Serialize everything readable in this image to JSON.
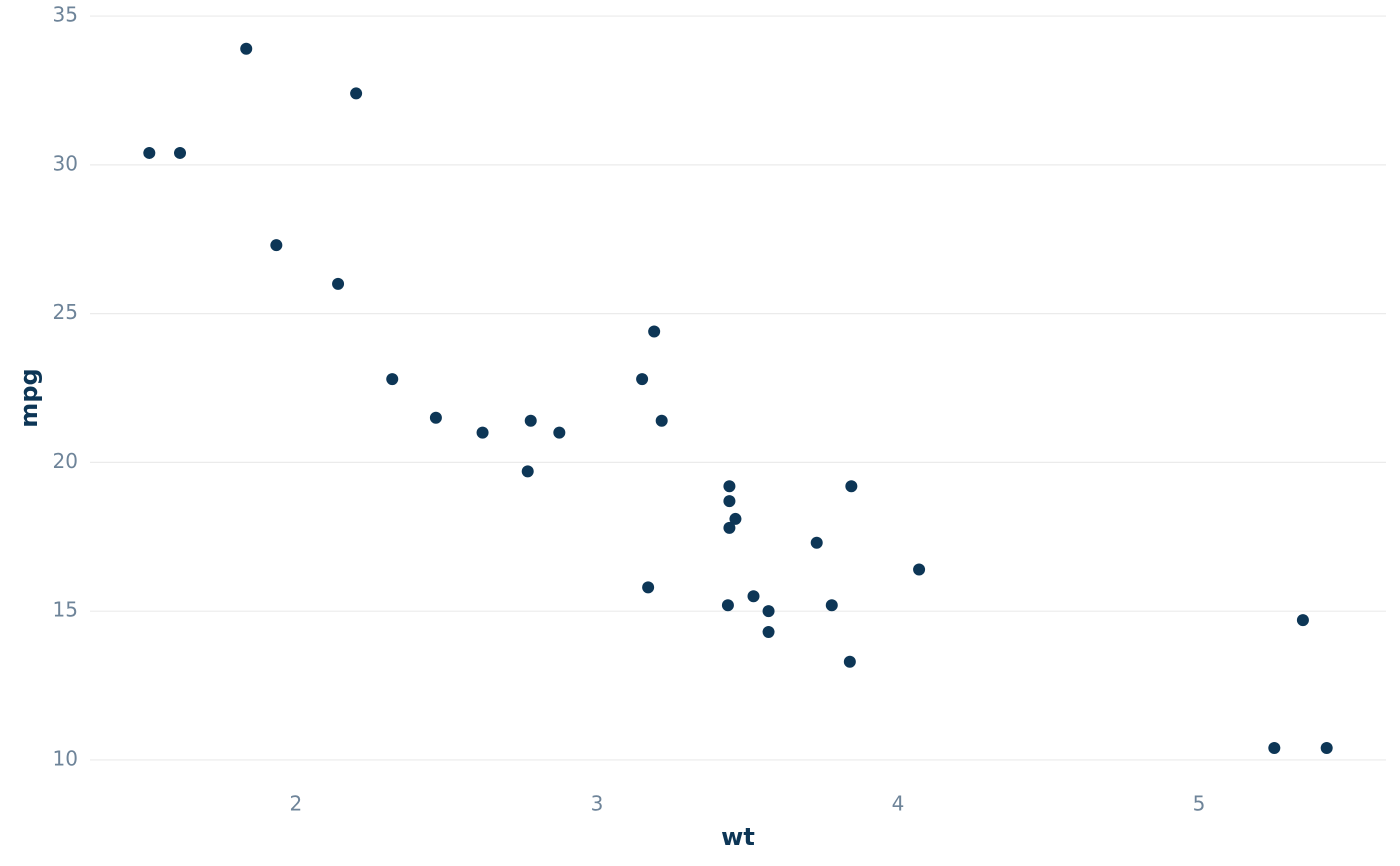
{
  "chart_data": {
    "type": "scatter",
    "x_label": "wt",
    "y_label": "mpg",
    "x": [
      2.62,
      2.875,
      2.32,
      3.215,
      3.44,
      3.46,
      3.57,
      3.19,
      3.15,
      3.44,
      3.44,
      4.07,
      3.73,
      3.78,
      5.25,
      5.424,
      5.345,
      2.2,
      1.615,
      1.835,
      2.465,
      3.52,
      3.435,
      3.84,
      3.845,
      1.935,
      2.14,
      1.513,
      3.17,
      2.77,
      3.57,
      2.78
    ],
    "values": [
      21.0,
      21.0,
      22.8,
      21.4,
      18.7,
      18.1,
      14.3,
      24.4,
      22.8,
      19.2,
      17.8,
      16.4,
      17.3,
      15.2,
      10.4,
      10.4,
      14.7,
      32.4,
      30.4,
      33.9,
      21.5,
      15.5,
      15.2,
      13.3,
      19.2,
      27.3,
      26.0,
      30.4,
      15.8,
      19.7,
      15.0,
      21.4
    ],
    "color": "#0d3656",
    "xlim": [
      1.316,
      5.621
    ],
    "ylim": [
      8.99,
      35.54
    ],
    "xticks": [
      2,
      3,
      4,
      5
    ],
    "yticks": [
      10,
      15,
      20,
      25,
      30,
      35
    ],
    "grid": "y"
  }
}
